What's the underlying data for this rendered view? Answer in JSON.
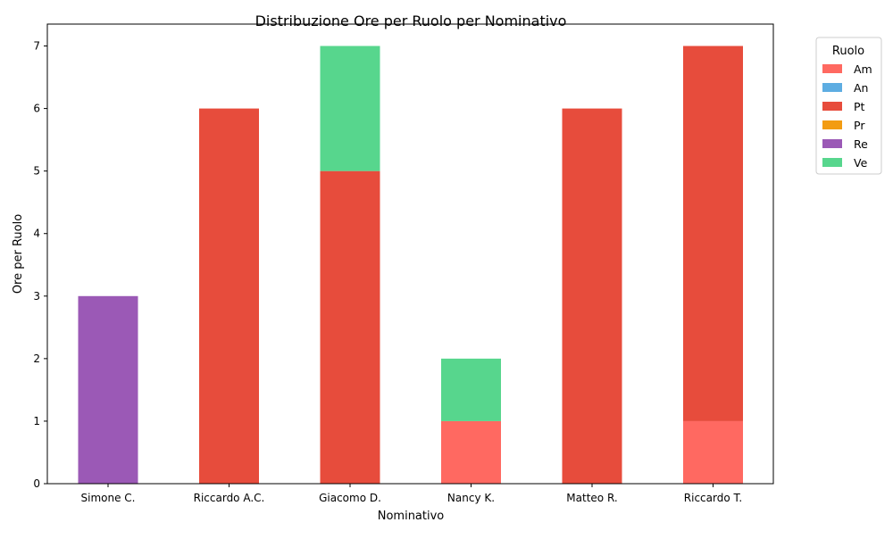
{
  "chart_data": {
    "type": "bar",
    "stacked": true,
    "title": "Distribuzione Ore per Ruolo per Nominativo",
    "xlabel": "Nominativo",
    "ylabel": "Ore per Ruolo",
    "categories": [
      "Simone C.",
      "Riccardo A.C.",
      "Giacomo D.",
      "Nancy K.",
      "Matteo R.",
      "Riccardo T."
    ],
    "ylim": [
      0,
      7.35
    ],
    "yticks": [
      "0",
      "1",
      "2",
      "3",
      "4",
      "5",
      "6",
      "7"
    ],
    "grid": false,
    "legend": {
      "title": "Ruolo",
      "placement": "outside-right"
    },
    "series": [
      {
        "name": "Am",
        "color": "#ff6961",
        "values": [
          0,
          0,
          0,
          1,
          0,
          1
        ]
      },
      {
        "name": "An",
        "color": "#5dade2",
        "values": [
          0,
          0,
          0,
          0,
          0,
          0
        ]
      },
      {
        "name": "Pt",
        "color": "#e74c3c",
        "values": [
          0,
          6,
          5,
          0,
          6,
          6
        ]
      },
      {
        "name": "Pr",
        "color": "#f39c12",
        "values": [
          0,
          0,
          0,
          0,
          0,
          0
        ]
      },
      {
        "name": "Re",
        "color": "#9b59b6",
        "values": [
          3,
          0,
          0,
          0,
          0,
          0
        ]
      },
      {
        "name": "Ve",
        "color": "#57d68d",
        "values": [
          0,
          0,
          2,
          1,
          0,
          0
        ]
      }
    ]
  }
}
